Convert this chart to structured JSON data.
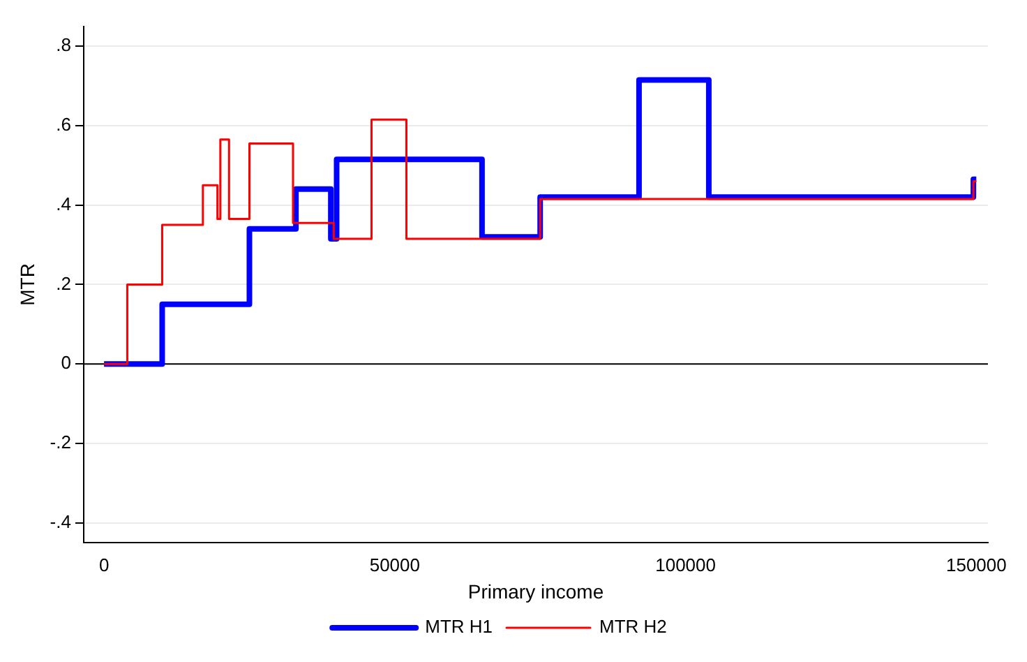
{
  "chart_data": {
    "type": "step",
    "xlabel": "Primary income",
    "ylabel": "MTR",
    "xlim": [
      -3500,
      152000
    ],
    "xticks": [
      0,
      50000,
      100000,
      150000
    ],
    "ylim": [
      -0.45,
      0.85
    ],
    "yticks": [
      {
        "value": -0.4,
        "label": "-.4"
      },
      {
        "value": -0.2,
        "label": "-.2"
      },
      0,
      {
        "value": 0.2,
        "label": ".2"
      },
      {
        "value": 0.4,
        "label": ".4"
      },
      {
        "value": 0.6,
        "label": ".6"
      },
      {
        "value": 0.8,
        "label": ".8"
      }
    ],
    "grid": "y",
    "legend": "bottom",
    "ref_lines": [
      {
        "axis": "y",
        "value": 0,
        "color": "#000000"
      }
    ],
    "series": [
      {
        "name": "MTR H1",
        "color": "#0000ff",
        "x": [
          0,
          10000,
          25000,
          33000,
          39000,
          40000,
          65000,
          75000,
          92000,
          104000,
          149500,
          150000
        ],
        "values": [
          0,
          0.15,
          0.34,
          0.44,
          0.315,
          0.515,
          0.32,
          0.42,
          0.715,
          0.42,
          0.465,
          0.465
        ]
      },
      {
        "name": "MTR H2",
        "color": "#ff0000",
        "x": [
          0,
          4000,
          10000,
          17000,
          19500,
          20000,
          21500,
          25000,
          32500,
          39500,
          46000,
          52000,
          75000,
          149500,
          150000
        ],
        "values": [
          0,
          0.2,
          0.35,
          0.45,
          0.365,
          0.565,
          0.365,
          0.555,
          0.355,
          0.315,
          0.615,
          0.315,
          0.415,
          0.46,
          0.46
        ]
      }
    ]
  }
}
